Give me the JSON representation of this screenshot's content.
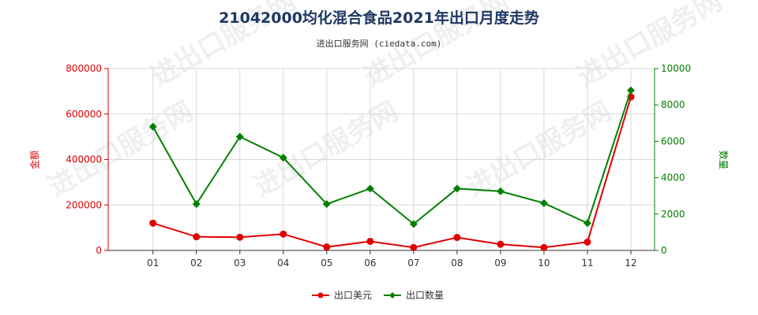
{
  "chart_data": {
    "type": "line",
    "title": "21042000均化混合食品2021年出口月度走势",
    "subtitle": "进出口服务网 (ciedata.com)",
    "categories": [
      "01",
      "02",
      "03",
      "04",
      "05",
      "06",
      "07",
      "08",
      "09",
      "10",
      "11",
      "12"
    ],
    "ylabel_left": "金额",
    "ylabel_right": "数量",
    "ylim_left": [
      0,
      800000
    ],
    "ylim_right": [
      0,
      10000
    ],
    "yticks_left": [
      "0",
      "200000",
      "400000",
      "600000",
      "800000"
    ],
    "yticks_right": [
      "0",
      "2000",
      "4000",
      "6000",
      "8000",
      "10000"
    ],
    "grid": true,
    "legend_position": "bottom",
    "series": [
      {
        "name": "出口美元",
        "axis": "left",
        "color": "#e00000",
        "marker": "circle",
        "values": [
          120000,
          60000,
          58000,
          72000,
          15000,
          40000,
          13000,
          57000,
          27000,
          13000,
          37000,
          675000
        ]
      },
      {
        "name": "出口数量",
        "axis": "right",
        "color": "#008000",
        "marker": "diamond",
        "values": [
          6800,
          2550,
          6250,
          5100,
          2550,
          3400,
          1450,
          3400,
          3250,
          2600,
          1500,
          8800
        ]
      }
    ],
    "watermark": "进出口服务网"
  }
}
